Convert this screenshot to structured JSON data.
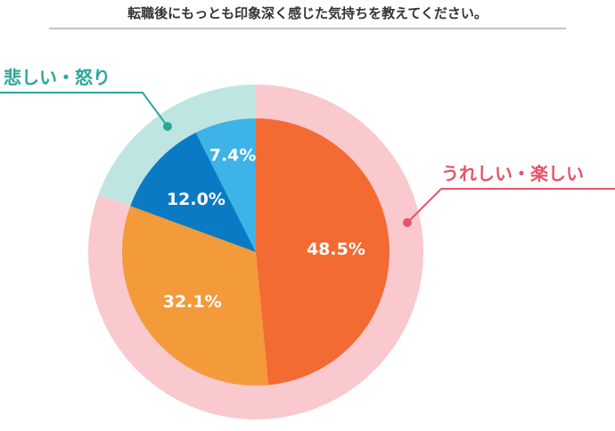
{
  "chart_data": {
    "type": "pie",
    "title": "転職後にもっとも印象深く感じた気持ちを教えてください。",
    "slices": [
      {
        "label": "48.5%",
        "value": 48.5,
        "color": "#F46A33"
      },
      {
        "label": "32.1%",
        "value": 32.1,
        "color": "#F39A3A"
      },
      {
        "label": "12.0%",
        "value": 12.0,
        "color": "#0A7AC4"
      },
      {
        "label": "7.4%",
        "value": 7.4,
        "color": "#3DB3E8"
      }
    ],
    "groups": [
      {
        "label": "うれしい・楽しい",
        "value": 80.6,
        "color": "#F9C9CD",
        "text_color": "#E5556A"
      },
      {
        "label": "悲しい・怒り",
        "value": 19.4,
        "color": "#BFE5E2",
        "text_color": "#2BA69A"
      }
    ]
  }
}
